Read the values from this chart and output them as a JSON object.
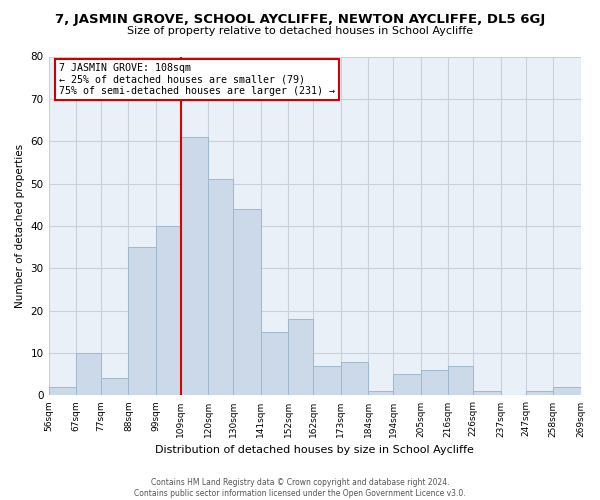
{
  "title": "7, JASMIN GROVE, SCHOOL AYCLIFFE, NEWTON AYCLIFFE, DL5 6GJ",
  "subtitle": "Size of property relative to detached houses in School Aycliffe",
  "xlabel": "Distribution of detached houses by size in School Aycliffe",
  "ylabel": "Number of detached properties",
  "bin_edges": [
    56,
    67,
    77,
    88,
    99,
    109,
    120,
    130,
    141,
    152,
    162,
    173,
    184,
    194,
    205,
    216,
    226,
    237,
    247,
    258,
    269
  ],
  "bar_heights": [
    2,
    10,
    4,
    35,
    40,
    61,
    51,
    44,
    15,
    18,
    7,
    8,
    1,
    5,
    6,
    7,
    1,
    0,
    1,
    2,
    2
  ],
  "bar_color": "#ccd9e8",
  "bar_edgecolor": "#a0b8cc",
  "plot_bg_color": "#eaf0f8",
  "vline_x": 109,
  "vline_color": "#dd0000",
  "annotation_title": "7 JASMIN GROVE: 108sqm",
  "annotation_line1": "← 25% of detached houses are smaller (79)",
  "annotation_line2": "75% of semi-detached houses are larger (231) →",
  "annotation_box_color": "#ffffff",
  "annotation_box_edgecolor": "#cc0000",
  "ylim": [
    0,
    80
  ],
  "yticks": [
    0,
    10,
    20,
    30,
    40,
    50,
    60,
    70,
    80
  ],
  "tick_labels": [
    "56sqm",
    "67sqm",
    "77sqm",
    "88sqm",
    "99sqm",
    "109sqm",
    "120sqm",
    "130sqm",
    "141sqm",
    "152sqm",
    "162sqm",
    "173sqm",
    "184sqm",
    "194sqm",
    "205sqm",
    "216sqm",
    "226sqm",
    "237sqm",
    "247sqm",
    "258sqm",
    "269sqm"
  ],
  "footer_line1": "Contains HM Land Registry data © Crown copyright and database right 2024.",
  "footer_line2": "Contains public sector information licensed under the Open Government Licence v3.0.",
  "background_color": "#ffffff",
  "grid_color": "#c8d0dc"
}
